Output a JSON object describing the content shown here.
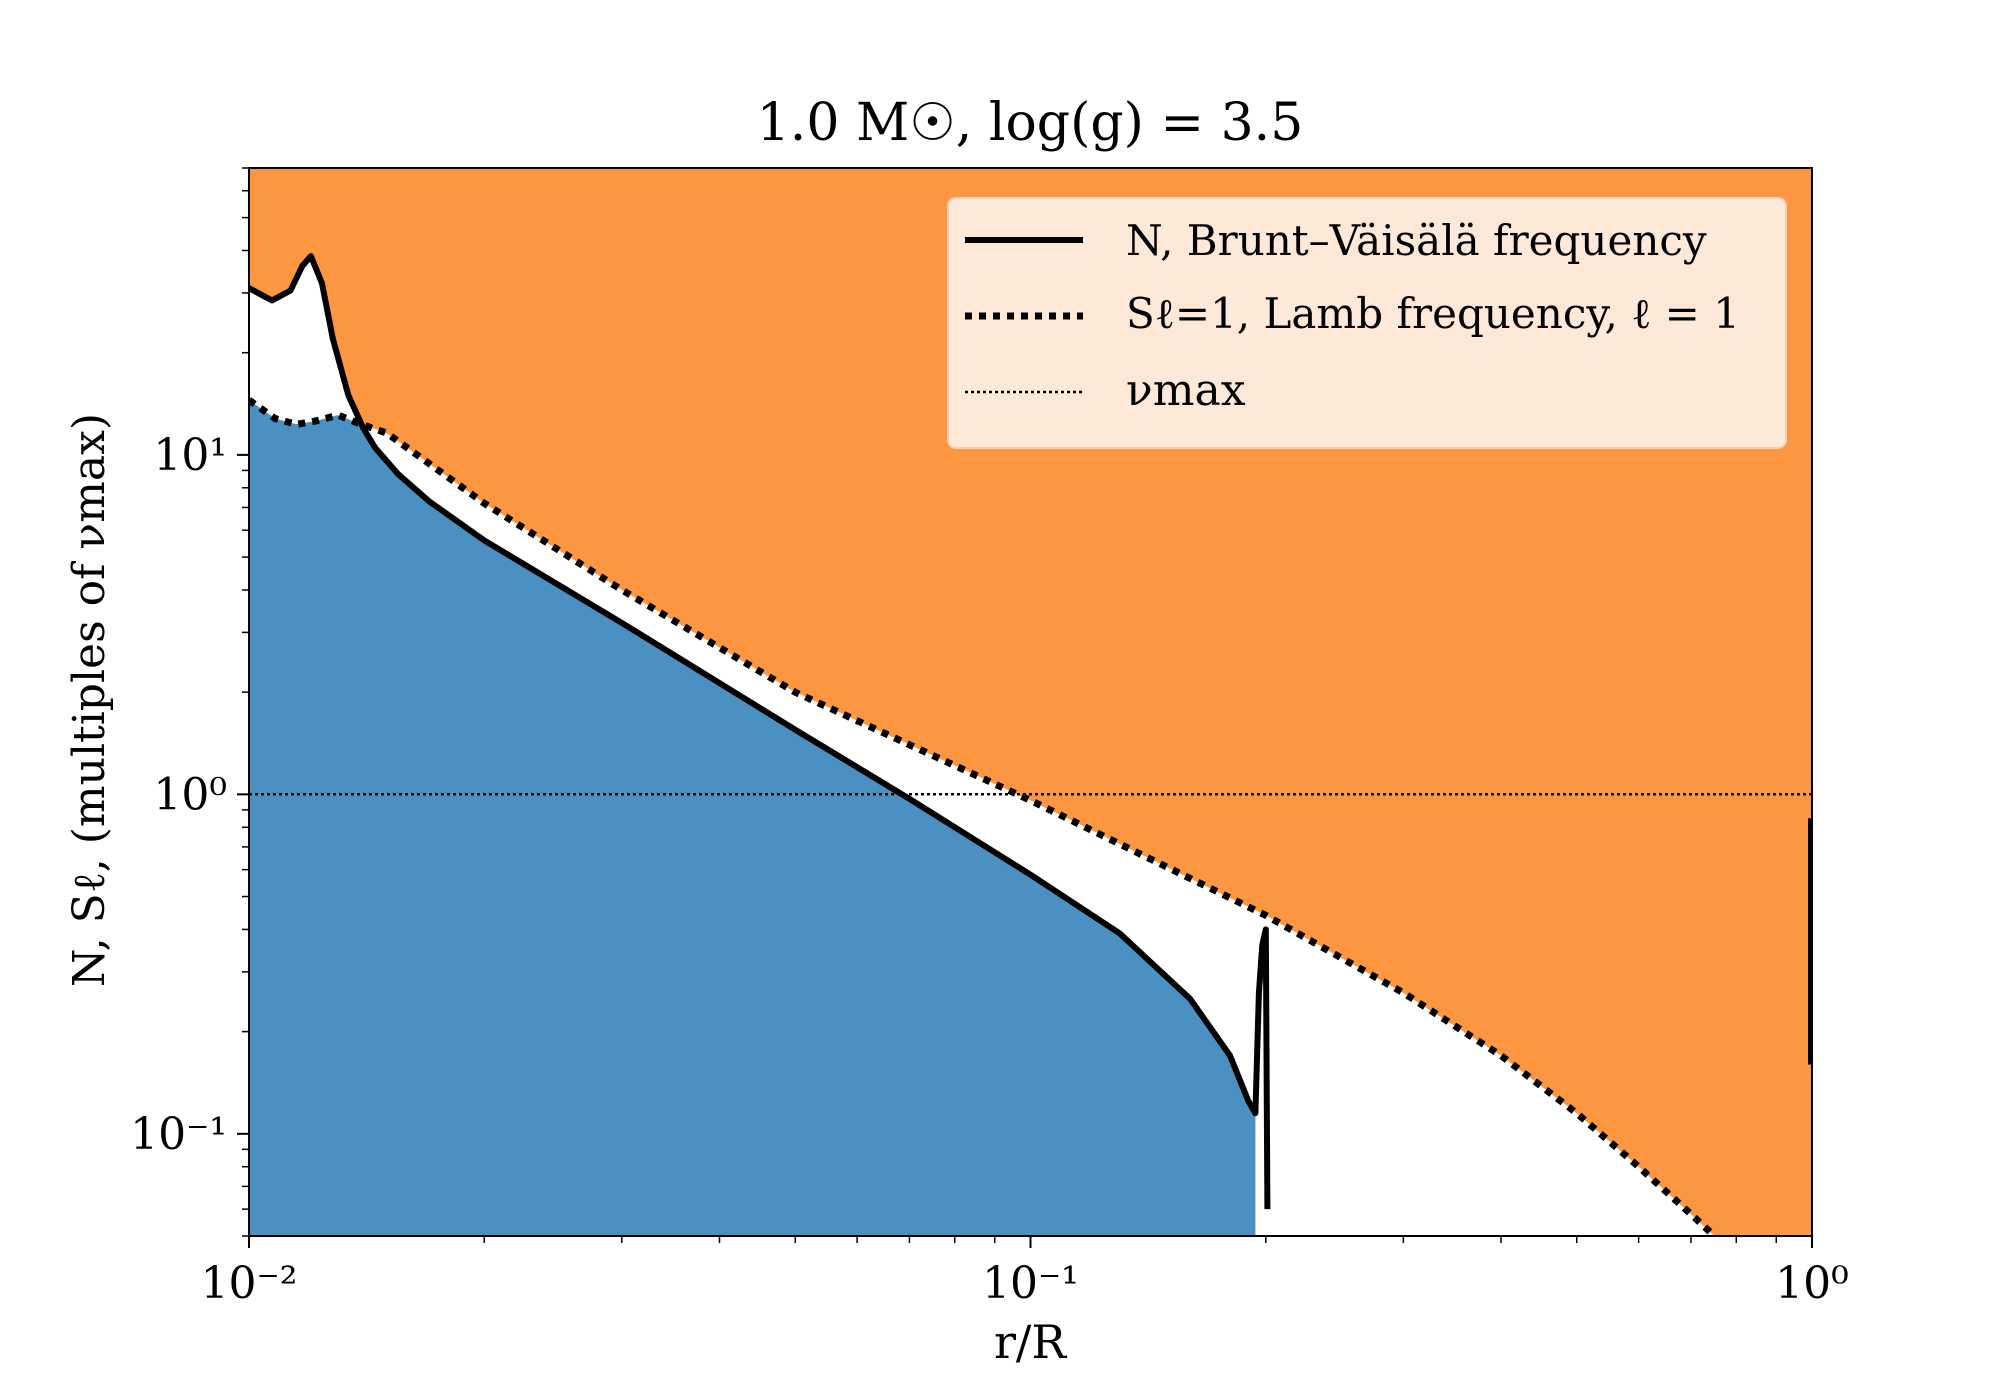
{
  "chart_data": {
    "type": "line",
    "title": "1.0 M☉, log(g) = 3.5",
    "xlabel": "r/R",
    "ylabel": "N, Sℓ, (multiples of νmax)",
    "xscale": "log",
    "yscale": "log",
    "xlim": [
      0.01,
      1.0
    ],
    "ylim": [
      0.05,
      70
    ],
    "x_ticks": [
      {
        "value": 0.01,
        "label": "10⁻²"
      },
      {
        "value": 0.1,
        "label": "10⁻¹"
      },
      {
        "value": 1.0,
        "label": "10⁰"
      }
    ],
    "y_ticks": [
      {
        "value": 0.1,
        "label": "10⁻¹"
      },
      {
        "value": 1.0,
        "label": "10⁰"
      },
      {
        "value": 10,
        "label": "10¹"
      }
    ],
    "grid": false,
    "legend_position": "top-right",
    "colors": {
      "g_mode_region": "#4a90c2",
      "p_mode_region": "#fd9641",
      "lines": "#000000",
      "legend_bg": "#fee9d9"
    },
    "series": [
      {
        "name": "N, Brunt–Väisälä frequency",
        "style": "solid",
        "x": [
          0.01,
          0.0107,
          0.0113,
          0.0117,
          0.012,
          0.0124,
          0.0128,
          0.0134,
          0.014,
          0.0145,
          0.0155,
          0.017,
          0.02,
          0.03,
          0.05,
          0.07,
          0.1,
          0.13,
          0.16,
          0.18,
          0.19,
          0.194,
          0.196,
          0.198,
          0.2,
          0.201
        ],
        "y": [
          31,
          28.5,
          30.5,
          36,
          38.5,
          32,
          22,
          15,
          12,
          10.5,
          8.8,
          7.3,
          5.6,
          3.2,
          1.55,
          0.97,
          0.58,
          0.39,
          0.25,
          0.17,
          0.125,
          0.115,
          0.26,
          0.36,
          0.4,
          0.06
        ]
      },
      {
        "name": "Sℓ=1, Lamb frequency, ℓ = 1",
        "style": "dotted-thick",
        "x": [
          0.01,
          0.0108,
          0.0115,
          0.0122,
          0.013,
          0.0138,
          0.015,
          0.02,
          0.03,
          0.05,
          0.1,
          0.2,
          0.3,
          0.4,
          0.5,
          0.6,
          0.7,
          0.75
        ],
        "y": [
          14.5,
          12.8,
          12.3,
          12.6,
          13.1,
          12.4,
          11.6,
          7.2,
          4.0,
          2.0,
          0.96,
          0.44,
          0.26,
          0.17,
          0.115,
          0.08,
          0.058,
          0.05
        ]
      },
      {
        "name": "νmax",
        "style": "dotted-thin",
        "x": [
          0.01,
          1.0
        ],
        "y": [
          1.0,
          1.0
        ]
      }
    ],
    "extra_segment": {
      "x": 1.0,
      "y": [
        0.16,
        0.85
      ]
    }
  }
}
